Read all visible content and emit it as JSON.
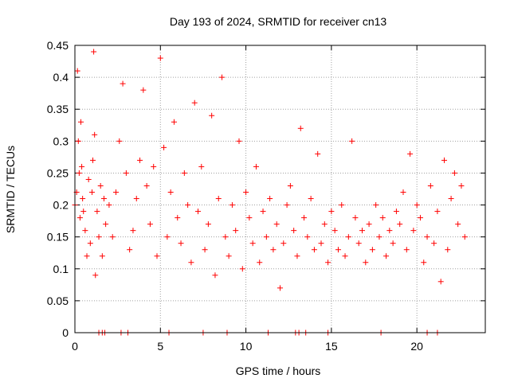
{
  "chart_data": {
    "type": "scatter",
    "title": "Day 193 of 2024, SRMTID for receiver cn13",
    "xlabel": "GPS time / hours",
    "ylabel": "SRMTID / TECUs",
    "xlim": [
      0,
      24
    ],
    "ylim": [
      0,
      0.45
    ],
    "x_ticks": [
      0,
      5,
      10,
      15,
      20
    ],
    "x_tick_labels": [
      "0",
      "5",
      "10",
      "15",
      "20"
    ],
    "y_ticks": [
      0,
      0.05,
      0.1,
      0.15,
      0.2,
      0.25,
      0.3,
      0.35,
      0.4,
      0.45
    ],
    "y_tick_labels": [
      "0",
      "0.05",
      "0.1",
      "0.15",
      "0.2",
      "0.25",
      "0.3",
      "0.35",
      "0.4",
      "0.45"
    ],
    "grid": true,
    "marker": "plus",
    "color": "#ff0000",
    "series": [
      {
        "name": "SRMTID",
        "x": [
          0.0,
          0.1,
          0.15,
          0.2,
          0.25,
          0.3,
          0.35,
          0.4,
          0.45,
          0.5,
          0.6,
          0.7,
          0.8,
          0.9,
          1.0,
          1.05,
          1.1,
          1.15,
          1.2,
          1.3,
          1.4,
          1.5,
          1.6,
          1.7,
          1.8,
          2.0,
          2.2,
          2.4,
          2.6,
          2.8,
          3.0,
          3.2,
          3.4,
          3.6,
          3.8,
          4.0,
          4.2,
          4.4,
          4.6,
          4.8,
          5.0,
          5.2,
          5.4,
          5.6,
          5.8,
          6.0,
          6.2,
          6.4,
          6.6,
          6.8,
          7.0,
          7.2,
          7.4,
          7.6,
          7.8,
          8.0,
          8.2,
          8.4,
          8.6,
          8.8,
          9.0,
          9.2,
          9.4,
          9.6,
          9.8,
          10.0,
          10.2,
          10.4,
          10.6,
          10.8,
          11.0,
          11.2,
          11.4,
          11.6,
          11.8,
          12.0,
          12.2,
          12.4,
          12.6,
          12.8,
          13.0,
          13.2,
          13.4,
          13.6,
          13.8,
          14.0,
          14.2,
          14.4,
          14.6,
          14.8,
          15.0,
          15.2,
          15.4,
          15.6,
          15.8,
          16.0,
          16.2,
          16.4,
          16.6,
          16.8,
          17.0,
          17.2,
          17.4,
          17.6,
          17.8,
          18.0,
          18.2,
          18.4,
          18.6,
          18.8,
          19.0,
          19.2,
          19.4,
          19.6,
          19.8,
          20.0,
          20.2,
          20.4,
          20.6,
          20.8,
          21.0,
          21.2,
          21.4,
          21.6,
          21.8,
          22.0,
          22.2,
          22.4,
          22.6,
          22.8
        ],
        "y": [
          0.2,
          0.22,
          0.41,
          0.3,
          0.25,
          0.18,
          0.33,
          0.26,
          0.21,
          0.19,
          0.16,
          0.12,
          0.24,
          0.14,
          0.22,
          0.27,
          0.44,
          0.31,
          0.09,
          0.19,
          0.15,
          0.23,
          0.12,
          0.21,
          0.17,
          0.2,
          0.15,
          0.22,
          0.3,
          0.39,
          0.25,
          0.13,
          0.16,
          0.21,
          0.27,
          0.38,
          0.23,
          0.17,
          0.26,
          0.12,
          0.43,
          0.29,
          0.15,
          0.22,
          0.33,
          0.18,
          0.14,
          0.25,
          0.2,
          0.11,
          0.36,
          0.19,
          0.26,
          0.13,
          0.17,
          0.34,
          0.09,
          0.21,
          0.4,
          0.15,
          0.12,
          0.2,
          0.16,
          0.3,
          0.1,
          0.22,
          0.18,
          0.14,
          0.26,
          0.11,
          0.19,
          0.15,
          0.21,
          0.13,
          0.17,
          0.07,
          0.14,
          0.2,
          0.23,
          0.16,
          0.12,
          0.32,
          0.18,
          0.15,
          0.21,
          0.13,
          0.28,
          0.14,
          0.17,
          0.11,
          0.19,
          0.16,
          0.13,
          0.2,
          0.12,
          0.15,
          0.3,
          0.18,
          0.14,
          0.16,
          0.11,
          0.17,
          0.13,
          0.2,
          0.15,
          0.18,
          0.12,
          0.16,
          0.14,
          0.19,
          0.17,
          0.22,
          0.13,
          0.28,
          0.16,
          0.2,
          0.18,
          0.11,
          0.15,
          0.23,
          0.14,
          0.19,
          0.08,
          0.27,
          0.13,
          0.21,
          0.25,
          0.17,
          0.23,
          0.15
        ],
        "zero_x": [
          1.4,
          1.6,
          1.75,
          2.7,
          3.1,
          5.5,
          7.5,
          8.9,
          11.3,
          12.9,
          13.1,
          13.5,
          14.8,
          17.9,
          20.6,
          21.2
        ]
      }
    ]
  }
}
